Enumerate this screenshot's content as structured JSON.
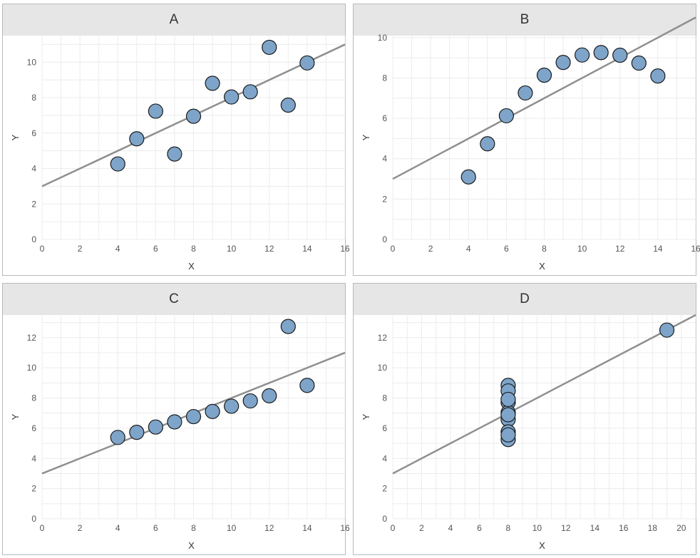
{
  "chart_data": [
    {
      "type": "scatter",
      "title": "A",
      "xlabel": "X",
      "ylabel": "Y",
      "xlim": [
        0,
        16
      ],
      "ylim": [
        0,
        11.5
      ],
      "xticks": [
        0,
        2,
        4,
        6,
        8,
        10,
        12,
        14,
        16
      ],
      "yticks": [
        0,
        2,
        4,
        6,
        8,
        10
      ],
      "x": [
        10,
        8,
        13,
        9,
        11,
        14,
        6,
        4,
        12,
        7,
        5
      ],
      "y": [
        8.04,
        6.95,
        7.58,
        8.81,
        8.33,
        9.96,
        7.24,
        4.26,
        10.84,
        4.82,
        5.68
      ],
      "fit": {
        "intercept": 3.0,
        "slope": 0.5
      }
    },
    {
      "type": "scatter",
      "title": "B",
      "xlabel": "X",
      "ylabel": "Y",
      "xlim": [
        0,
        16
      ],
      "ylim": [
        0,
        10.1
      ],
      "xticks": [
        0,
        2,
        4,
        6,
        8,
        10,
        12,
        14,
        16
      ],
      "yticks": [
        0,
        2,
        4,
        6,
        8,
        10
      ],
      "x": [
        10,
        8,
        13,
        9,
        11,
        14,
        6,
        4,
        12,
        7,
        5
      ],
      "y": [
        9.14,
        8.14,
        8.74,
        8.77,
        9.26,
        8.1,
        6.13,
        3.1,
        9.13,
        7.26,
        4.74
      ],
      "fit": {
        "intercept": 3.0,
        "slope": 0.5
      }
    },
    {
      "type": "scatter",
      "title": "C",
      "xlabel": "X",
      "ylabel": "Y",
      "xlim": [
        0,
        16
      ],
      "ylim": [
        0,
        13.5
      ],
      "xticks": [
        0,
        2,
        4,
        6,
        8,
        10,
        12,
        14,
        16
      ],
      "yticks": [
        0,
        2,
        4,
        6,
        8,
        10,
        12
      ],
      "x": [
        10,
        8,
        13,
        9,
        11,
        14,
        6,
        4,
        12,
        7,
        5
      ],
      "y": [
        7.46,
        6.77,
        12.74,
        7.11,
        7.81,
        8.84,
        6.08,
        5.39,
        8.15,
        6.42,
        5.73
      ],
      "fit": {
        "intercept": 3.0,
        "slope": 0.5
      }
    },
    {
      "type": "scatter",
      "title": "D",
      "xlabel": "X",
      "ylabel": "Y",
      "xlim": [
        0,
        21
      ],
      "ylim": [
        0,
        13.5
      ],
      "xticks": [
        0,
        2,
        4,
        6,
        8,
        10,
        12,
        14,
        16,
        18,
        20
      ],
      "yticks": [
        0,
        2,
        4,
        6,
        8,
        10,
        12
      ],
      "x": [
        8,
        8,
        8,
        8,
        8,
        8,
        8,
        19,
        8,
        8,
        8
      ],
      "y": [
        6.58,
        5.76,
        7.71,
        8.84,
        8.47,
        7.04,
        5.25,
        12.5,
        5.56,
        7.91,
        6.89
      ],
      "fit": {
        "intercept": 3.0,
        "slope": 0.5
      }
    }
  ]
}
